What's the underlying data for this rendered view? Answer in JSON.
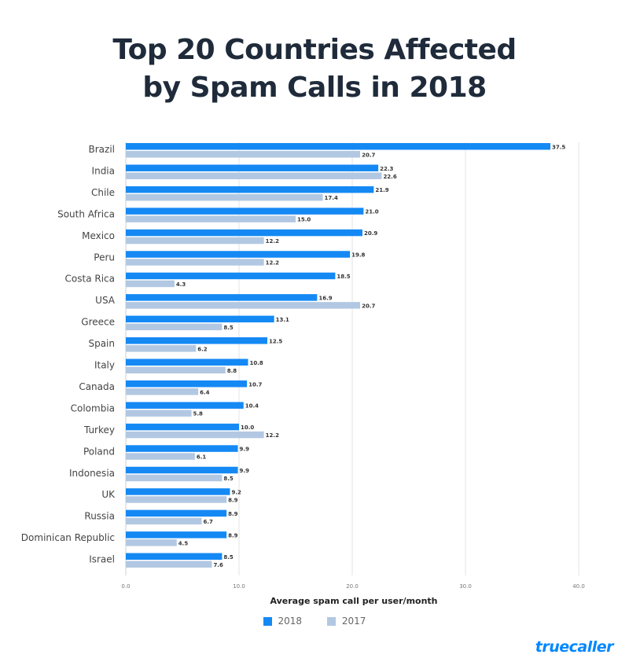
{
  "title_line1": "Top 20 Countries Affected",
  "title_line2": "by Spam Calls in 2018",
  "brand": "truecaller",
  "colors": {
    "s2018": "#1489f4",
    "s2017": "#b2c8e2",
    "grid": "#e3e3e3"
  },
  "chart_data": {
    "type": "bar",
    "orientation": "horizontal",
    "title": "Top 20 Countries Affected by Spam Calls in 2018",
    "xlabel": "Average spam call per user/month",
    "ylabel": "",
    "xlim": [
      0,
      40
    ],
    "xticks": [
      "0.0",
      "10.0",
      "20.0",
      "30.0",
      "40.0"
    ],
    "grid": true,
    "legend_position": "bottom",
    "categories": [
      "Brazil",
      "India",
      "Chile",
      "South Africa",
      "Mexico",
      "Peru",
      "Costa Rica",
      "USA",
      "Greece",
      "Spain",
      "Italy",
      "Canada",
      "Colombia",
      "Turkey",
      "Poland",
      "Indonesia",
      "UK",
      "Russia",
      "Dominican Republic",
      "Israel"
    ],
    "series": [
      {
        "name": "2018",
        "values": [
          37.5,
          22.3,
          21.9,
          21.0,
          20.9,
          19.8,
          18.5,
          16.9,
          13.1,
          12.5,
          10.8,
          10.7,
          10.4,
          10.0,
          9.9,
          9.9,
          9.2,
          8.9,
          8.9,
          8.5
        ]
      },
      {
        "name": "2017",
        "values": [
          20.7,
          22.6,
          17.4,
          15.0,
          12.2,
          12.2,
          4.3,
          20.7,
          8.5,
          6.2,
          8.8,
          6.4,
          5.8,
          12.2,
          6.1,
          8.5,
          8.9,
          6.7,
          4.5,
          7.6
        ]
      }
    ]
  }
}
